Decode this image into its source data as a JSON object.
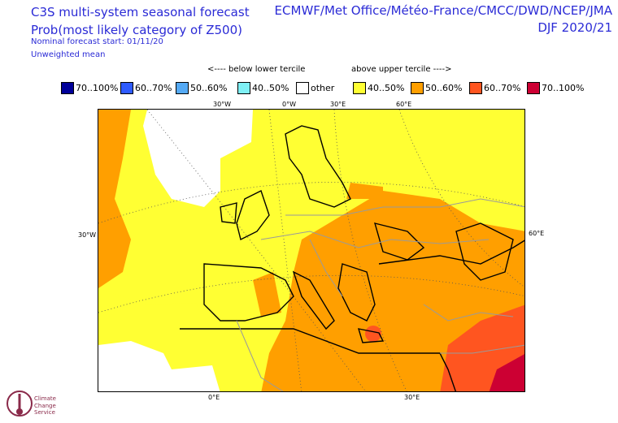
{
  "header": {
    "title_line1": "C3S multi-system seasonal forecast",
    "title_line2": "Prob(most likely category of Z500)",
    "subtitle1": "Nominal forecast start: 01/11/20",
    "subtitle2": "Unweighted mean",
    "source_line1": "ECMWF/Met Office/Météo-France/CMCC/DWD/NCEP/JMA",
    "source_line2": "DJF 2020/21"
  },
  "legend": {
    "below_label": "<---- below lower tercile",
    "above_label": "above upper tercile ---->",
    "items": [
      {
        "label": "70..100%",
        "color": "#000099"
      },
      {
        "label": "60..70%",
        "color": "#2e5bff"
      },
      {
        "label": "50..60%",
        "color": "#55aaf5"
      },
      {
        "label": "40..50%",
        "color": "#7ff0f5"
      },
      {
        "label": "other",
        "color": "#ffffff"
      },
      {
        "label": "40..50%",
        "color": "#ffff33"
      },
      {
        "label": "50..60%",
        "color": "#ff9f00"
      },
      {
        "label": "60..70%",
        "color": "#ff5520"
      },
      {
        "label": "70..100%",
        "color": "#cc0033"
      }
    ]
  },
  "map": {
    "top_labels": [
      "30°W",
      "0°W",
      "30°E",
      "60°E"
    ],
    "bottom_labels": [
      "0°E",
      "30°E"
    ],
    "left_label": "30°W",
    "right_label": "60°E"
  },
  "logo": {
    "line1": "Climate",
    "line2": "Change Service"
  }
}
